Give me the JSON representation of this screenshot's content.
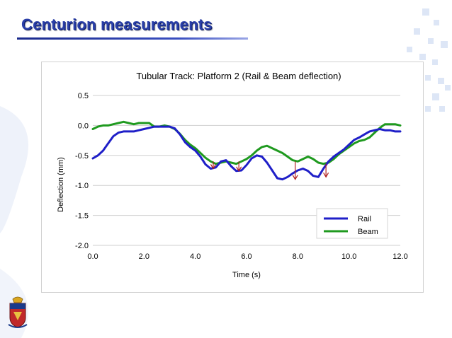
{
  "slide": {
    "title": "Centurion measurements"
  },
  "colors": {
    "title": "#2a3fa8",
    "rail": "#1f1fc8",
    "beam": "#1f9a1f",
    "arrow": "#b02020",
    "deco": "#c9d9f2"
  },
  "chart_data": {
    "type": "line",
    "title": "Tubular Track: Platform 2 (Rail & Beam deflection)",
    "xlabel": "Time (s)",
    "ylabel": "Deflection (mm)",
    "xlim": [
      0,
      12
    ],
    "ylim": [
      -2,
      0.5
    ],
    "xticks": [
      "0.0",
      "2.0",
      "4.0",
      "6.0",
      "8.0",
      "10.0",
      "12.0"
    ],
    "yticks": [
      "0.5",
      "0.0",
      "-0.5",
      "-1.0",
      "-1.5",
      "-2.0"
    ],
    "grid": "horizontal",
    "legend_position": "bottom-right",
    "series": [
      {
        "name": "Rail",
        "color": "#1f1fc8",
        "x": [
          0,
          0.2,
          0.4,
          0.6,
          0.8,
          1.0,
          1.2,
          1.4,
          1.6,
          1.8,
          2.0,
          2.2,
          2.4,
          2.6,
          2.8,
          3.0,
          3.2,
          3.4,
          3.6,
          3.8,
          4.0,
          4.2,
          4.4,
          4.6,
          4.8,
          5.0,
          5.2,
          5.4,
          5.6,
          5.8,
          6.0,
          6.2,
          6.4,
          6.6,
          6.8,
          7.0,
          7.2,
          7.4,
          7.6,
          7.8,
          8.0,
          8.2,
          8.4,
          8.6,
          8.8,
          9.0,
          9.2,
          9.4,
          9.6,
          9.8,
          10.0,
          10.2,
          10.4,
          10.6,
          10.8,
          11.0,
          11.2,
          11.4,
          11.6,
          11.8,
          12.0
        ],
        "values": [
          -0.55,
          -0.5,
          -0.42,
          -0.3,
          -0.18,
          -0.12,
          -0.1,
          -0.1,
          -0.1,
          -0.08,
          -0.06,
          -0.04,
          -0.02,
          -0.02,
          -0.02,
          -0.02,
          -0.05,
          -0.15,
          -0.28,
          -0.36,
          -0.42,
          -0.52,
          -0.65,
          -0.72,
          -0.7,
          -0.6,
          -0.58,
          -0.68,
          -0.76,
          -0.75,
          -0.66,
          -0.55,
          -0.5,
          -0.52,
          -0.62,
          -0.75,
          -0.88,
          -0.9,
          -0.86,
          -0.8,
          -0.75,
          -0.72,
          -0.76,
          -0.84,
          -0.86,
          -0.72,
          -0.6,
          -0.52,
          -0.46,
          -0.4,
          -0.32,
          -0.24,
          -0.2,
          -0.15,
          -0.1,
          -0.08,
          -0.06,
          -0.08,
          -0.08,
          -0.1,
          -0.1
        ]
      },
      {
        "name": "Beam",
        "color": "#1f9a1f",
        "x": [
          0,
          0.2,
          0.4,
          0.6,
          0.8,
          1.0,
          1.2,
          1.4,
          1.6,
          1.8,
          2.0,
          2.2,
          2.4,
          2.6,
          2.8,
          3.0,
          3.2,
          3.4,
          3.6,
          3.8,
          4.0,
          4.2,
          4.4,
          4.6,
          4.8,
          5.0,
          5.2,
          5.4,
          5.6,
          5.8,
          6.0,
          6.2,
          6.4,
          6.6,
          6.8,
          7.0,
          7.2,
          7.4,
          7.6,
          7.8,
          8.0,
          8.2,
          8.4,
          8.6,
          8.8,
          9.0,
          9.2,
          9.4,
          9.6,
          9.8,
          10.0,
          10.2,
          10.4,
          10.6,
          10.8,
          11.0,
          11.2,
          11.4,
          11.6,
          11.8,
          12.0
        ],
        "values": [
          -0.06,
          -0.02,
          0.0,
          0.0,
          0.02,
          0.04,
          0.06,
          0.04,
          0.02,
          0.04,
          0.04,
          0.04,
          -0.02,
          -0.02,
          0.0,
          -0.02,
          -0.06,
          -0.14,
          -0.24,
          -0.32,
          -0.38,
          -0.46,
          -0.54,
          -0.6,
          -0.64,
          -0.62,
          -0.6,
          -0.62,
          -0.64,
          -0.6,
          -0.56,
          -0.5,
          -0.42,
          -0.36,
          -0.34,
          -0.38,
          -0.42,
          -0.46,
          -0.52,
          -0.58,
          -0.6,
          -0.56,
          -0.52,
          -0.56,
          -0.62,
          -0.64,
          -0.62,
          -0.56,
          -0.48,
          -0.42,
          -0.36,
          -0.3,
          -0.26,
          -0.24,
          -0.2,
          -0.12,
          -0.04,
          0.02,
          0.02,
          0.02,
          0.0
        ]
      }
    ],
    "annotations": [
      {
        "type": "arrow",
        "x": 4.7,
        "y_from": -0.6,
        "y_to": -0.72
      },
      {
        "type": "arrow",
        "x": 5.7,
        "y_from": -0.6,
        "y_to": -0.76
      },
      {
        "type": "arrow",
        "x": 7.9,
        "y_from": -0.6,
        "y_to": -0.9
      },
      {
        "type": "arrow",
        "x": 9.1,
        "y_from": -0.64,
        "y_to": -0.86
      }
    ]
  }
}
